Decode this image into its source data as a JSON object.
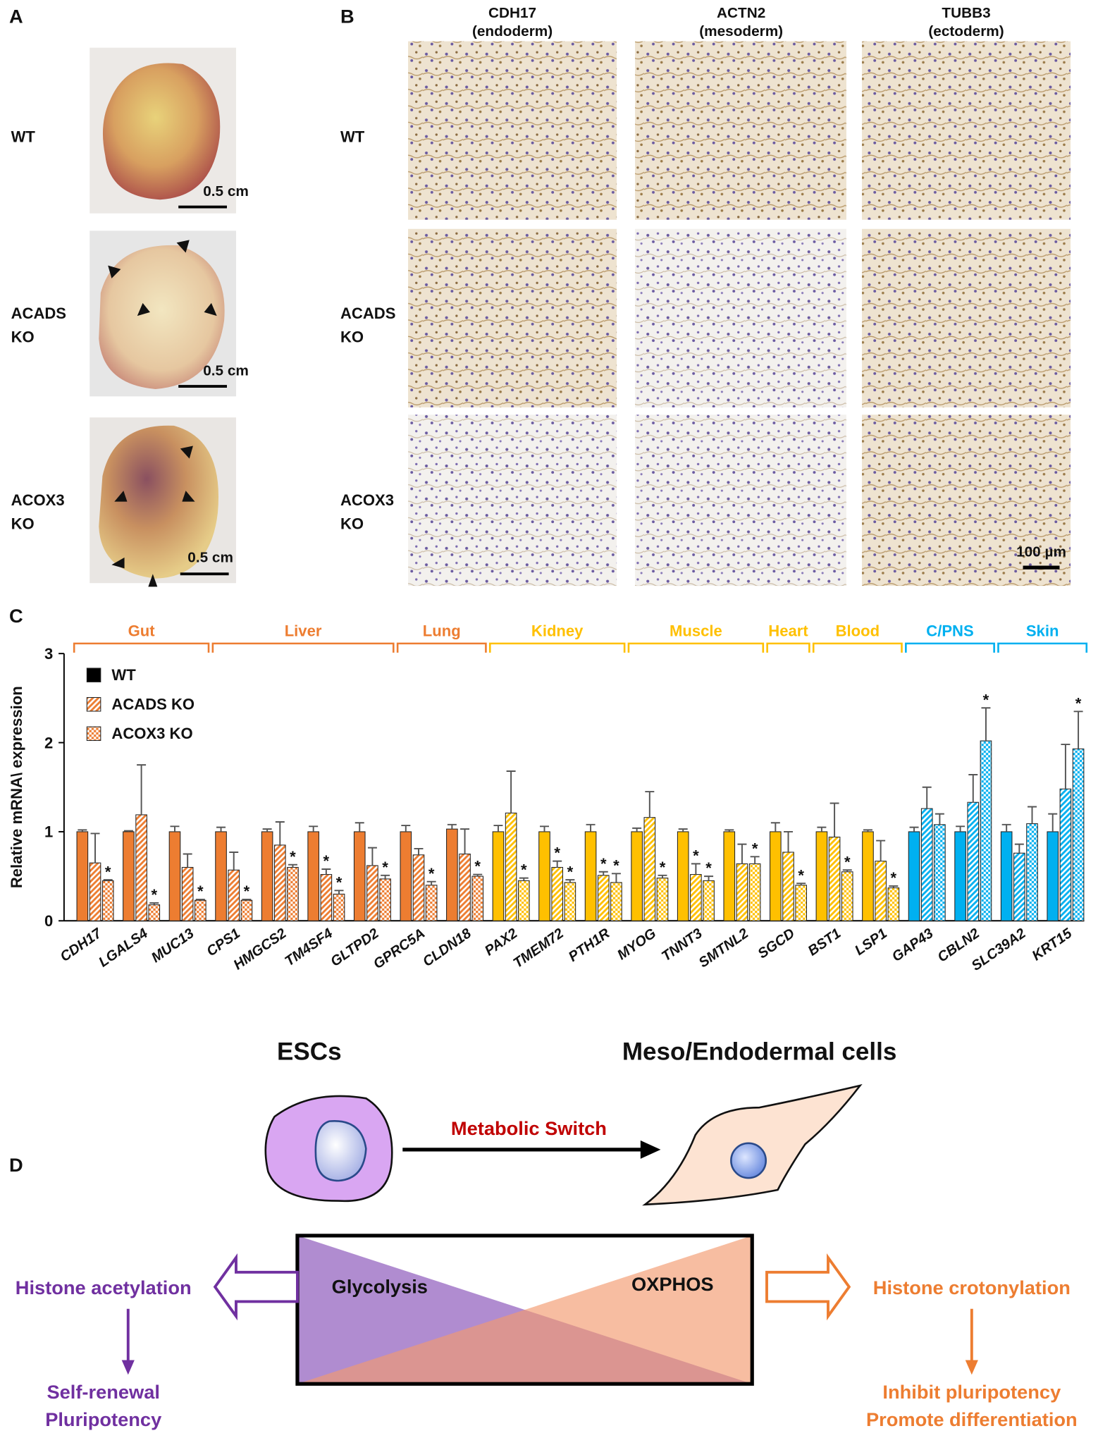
{
  "panel_a": {
    "label": "A",
    "rows": [
      {
        "lines": [
          "WT"
        ]
      },
      {
        "lines": [
          "ACADS",
          "KO"
        ]
      },
      {
        "lines": [
          "ACOX3",
          "KO"
        ]
      }
    ],
    "scale_bar": "0.5 cm"
  },
  "panel_b": {
    "label": "B",
    "columns": [
      {
        "marker": "CDH17",
        "layer": "(endoderm)"
      },
      {
        "marker": "ACTN2",
        "layer": "(mesoderm)"
      },
      {
        "marker": "TUBB3",
        "layer": "(ectoderm)"
      }
    ],
    "rows": [
      {
        "lines": [
          "WT"
        ]
      },
      {
        "lines": [
          "ACADS",
          "KO"
        ]
      },
      {
        "lines": [
          "ACOX3",
          "KO"
        ]
      }
    ],
    "scale_bar": "100 µm"
  },
  "chart_data": {
    "type": "bar",
    "panel_label": "C",
    "ylabel": "Relative mRNA\\ expression",
    "categories": [
      "CDH17",
      "LGALS4",
      "MUC13",
      "CPS1",
      "HMGCS2",
      "TM4SF4",
      "GLTPD2",
      "GPRC5A",
      "CLDN18",
      "PAX2",
      "TMEM72",
      "PTH1R",
      "MYOG",
      "TNNT3",
      "SMTNL2",
      "SGCD",
      "BST1",
      "LSP1",
      "GAP43",
      "CBLN2",
      "SLC39A2",
      "KRT15"
    ],
    "groups": [
      {
        "name": "Gut",
        "span": [
          0,
          2
        ],
        "color": "#ed7d31"
      },
      {
        "name": "Liver",
        "span": [
          3,
          6
        ],
        "color": "#ed7d31"
      },
      {
        "name": "Lung",
        "span": [
          7,
          8
        ],
        "color": "#ed7d31"
      },
      {
        "name": "Kidney",
        "span": [
          9,
          11
        ],
        "color": "#ffc000"
      },
      {
        "name": "Muscle",
        "span": [
          12,
          14
        ],
        "color": "#ffc000"
      },
      {
        "name": "Heart",
        "span": [
          15,
          15
        ],
        "color": "#ffc000"
      },
      {
        "name": "Blood",
        "span": [
          16,
          17
        ],
        "color": "#ffc000"
      },
      {
        "name": "C/PNS",
        "span": [
          18,
          19
        ],
        "color": "#00b0f0"
      },
      {
        "name": "Skin",
        "span": [
          20,
          21
        ],
        "color": "#00b0f0"
      }
    ],
    "series": [
      {
        "name": "WT",
        "color": "#000000",
        "pattern": "solid",
        "values": [
          1.0,
          1.0,
          1.0,
          1.0,
          1.0,
          1.0,
          1.0,
          1.0,
          1.03,
          1.0,
          1.0,
          1.0,
          1.0,
          1.0,
          1.0,
          1.0,
          1.0,
          1.0,
          1.0,
          1.0,
          1.0,
          1.0
        ],
        "errors": [
          0.02,
          0.01,
          0.06,
          0.05,
          0.03,
          0.06,
          0.1,
          0.07,
          0.05,
          0.07,
          0.06,
          0.08,
          0.04,
          0.03,
          0.02,
          0.1,
          0.05,
          0.02,
          0.05,
          0.06,
          0.08,
          0.2
        ],
        "annotations": [
          null,
          null,
          null,
          null,
          null,
          null,
          null,
          null,
          null,
          null,
          null,
          null,
          null,
          null,
          null,
          null,
          null,
          null,
          null,
          null,
          null,
          null
        ]
      },
      {
        "name": "ACADS KO",
        "color": "#ed7d31",
        "pattern": "hatch",
        "values": [
          0.65,
          1.19,
          0.6,
          0.57,
          0.85,
          0.52,
          0.62,
          0.74,
          0.75,
          1.21,
          0.6,
          0.51,
          1.16,
          0.52,
          0.64,
          0.77,
          0.94,
          0.67,
          1.26,
          1.33,
          0.76,
          1.48
        ],
        "errors": [
          0.33,
          0.56,
          0.15,
          0.2,
          0.26,
          0.06,
          0.2,
          0.07,
          0.28,
          0.47,
          0.07,
          0.04,
          0.29,
          0.12,
          0.22,
          0.23,
          0.38,
          0.23,
          0.24,
          0.31,
          0.1,
          0.5
        ],
        "annotations": [
          null,
          null,
          null,
          null,
          null,
          "*",
          null,
          null,
          null,
          null,
          "*",
          "*",
          null,
          "*",
          null,
          null,
          null,
          null,
          null,
          null,
          null,
          null
        ]
      },
      {
        "name": "ACOX3 KO",
        "color": "#ed7d31",
        "pattern": "dots",
        "values": [
          0.45,
          0.18,
          0.23,
          0.23,
          0.6,
          0.3,
          0.47,
          0.4,
          0.5,
          0.45,
          0.43,
          0.43,
          0.48,
          0.45,
          0.64,
          0.4,
          0.55,
          0.37,
          1.08,
          2.02,
          1.09,
          1.93
        ],
        "errors": [
          0.01,
          0.02,
          0.01,
          0.01,
          0.03,
          0.04,
          0.04,
          0.04,
          0.02,
          0.03,
          0.03,
          0.1,
          0.03,
          0.05,
          0.08,
          0.02,
          0.02,
          0.02,
          0.12,
          0.37,
          0.19,
          0.42
        ],
        "annotations": [
          "*",
          "*",
          "*",
          "*",
          "*",
          "*",
          "*",
          "*",
          "*",
          "*",
          "*",
          "*",
          "*",
          "*",
          "*",
          "*",
          "*",
          "*",
          null,
          "*",
          null,
          "*"
        ]
      }
    ],
    "ylim": [
      0,
      3
    ],
    "yticks": [
      0,
      1,
      2,
      3
    ]
  },
  "panel_d": {
    "label": "D",
    "start_cell": "ESCs",
    "end_cell": "Meso/Endodermal cells",
    "transition": "Metabolic Switch",
    "left_metabolism": "Glycolysis",
    "right_metabolism": "OXPHOS",
    "left_mark": "Histone acetylation",
    "right_mark": "Histone crotonylation",
    "left_outcome": [
      "Self-renewal",
      "Pluripotency"
    ],
    "right_outcome": [
      "Inhibit pluripotency",
      "Promote differentiation"
    ]
  }
}
